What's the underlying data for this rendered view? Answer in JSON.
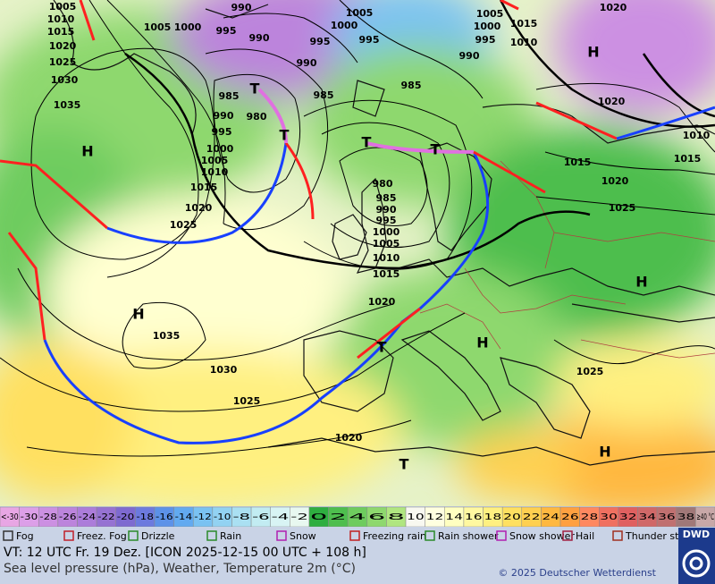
{
  "map": {
    "isobar_labels": [
      "1005",
      "1010",
      "1015",
      "1020",
      "1025",
      "1030",
      "1035",
      "1005",
      "1000",
      "990",
      "995",
      "990",
      "995",
      "990",
      "1005",
      "1000",
      "995",
      "1005",
      "1000",
      "995",
      "990",
      "1015",
      "1010",
      "985",
      "985",
      "985",
      "980",
      "990",
      "995",
      "1000",
      "1005",
      "1010",
      "1015",
      "1020",
      "1025",
      "980",
      "985",
      "990",
      "995",
      "1000",
      "1005",
      "1010",
      "1015",
      "1020",
      "1035",
      "1030",
      "1025",
      "1020",
      "1020",
      "1020",
      "1010",
      "1015",
      "1015",
      "1020",
      "1025",
      "1025"
    ],
    "centers": [
      "H",
      "H",
      "H",
      "H",
      "H",
      "H",
      "T",
      "T",
      "T",
      "T",
      "T",
      "T"
    ]
  },
  "legend": {
    "temperature": {
      "labels": [
        "<-30",
        "-30",
        "-28",
        "-26",
        "-24",
        "-22",
        "-20",
        "-18",
        "-16",
        "-14",
        "-12",
        "-10",
        "-8",
        "-6",
        "-4",
        "-2",
        "0",
        "2",
        "4",
        "6",
        "8",
        "10",
        "12",
        "14",
        "16",
        "18",
        "20",
        "22",
        "24",
        "26",
        "28",
        "30",
        "32",
        "34",
        "36",
        "38",
        "≥40 °C"
      ],
      "colors": [
        "#e8a6e4",
        "#dc9fe8",
        "#cc90e2",
        "#bc84dc",
        "#ac7cda",
        "#9672d2",
        "#7e6ad0",
        "#6c7ade",
        "#5c92e8",
        "#62aaf0",
        "#7ac2f2",
        "#92d2f2",
        "#aae0f2",
        "#c2ecf2",
        "#d8f4f4",
        "#e8f8f0",
        "#2eae40",
        "#4ebe4e",
        "#6ecc5e",
        "#8ed86e",
        "#b0e680",
        "#f8f8f0",
        "#ffffe0",
        "#ffffc0",
        "#fff8a0",
        "#fff080",
        "#ffe060",
        "#ffd050",
        "#ffb840",
        "#ffa040",
        "#ff8860",
        "#f07060",
        "#e06060",
        "#d06868",
        "#c07070",
        "#a07878",
        "#c8a8a8"
      ]
    },
    "weather": [
      "Fog",
      "Freez. Fog",
      "Drizzle",
      "Rain",
      "Snow",
      "Freezing rain",
      "Rain shower",
      "Snow shower",
      "Hail",
      "Thunder storm"
    ]
  },
  "footer": {
    "valid_time": "VT: 12 UTC Fr.  19 Dez. [ICON 2025-12-15  00 UTC + 108 h]",
    "description": "Sea level pressure (hPa), Weather, Temperature 2m (°C)",
    "copyright": "© 2025 Deutscher Wetterdienst",
    "logo": "DWD"
  }
}
